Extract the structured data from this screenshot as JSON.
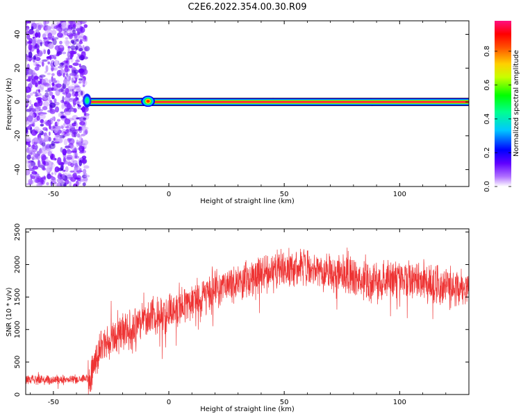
{
  "figure": {
    "title": "C2E6.2022.354.00.30.R09"
  },
  "colorbar": {
    "label": "Normalized spectral amplitude",
    "ticks": [
      "0.0",
      "0.2",
      "0.4",
      "0.6",
      "0.8"
    ],
    "tick_values": [
      0.0,
      0.2,
      0.4,
      0.6,
      0.8
    ],
    "range": [
      0.0,
      0.98
    ]
  },
  "chart_data": [
    {
      "type": "heatmap",
      "xlabel": "Height of straight line (km)",
      "ylabel": "Frequency (Hz)",
      "xlim": [
        -62,
        130
      ],
      "ylim": [
        -50,
        48
      ],
      "xticks": [
        -50,
        0,
        50,
        100
      ],
      "xtick_labels": [
        "-50",
        "0",
        "50",
        "100"
      ],
      "yticks": [
        -40,
        -20,
        0,
        20,
        40
      ],
      "ytick_labels": [
        "-40",
        "-20",
        "0",
        "20",
        "40"
      ],
      "colormap": [
        "#ffffff",
        "#8000ff",
        "#0000ff",
        "#00ffff",
        "#00ff00",
        "#ffff00",
        "#ff8000",
        "#ff0000",
        "#ff0080"
      ],
      "features": {
        "noise_region_x": [
          -62,
          -36
        ],
        "signal_line_frequency": 0,
        "signal_line_x_start": -36,
        "signal_blob_x": -9
      }
    },
    {
      "type": "line",
      "xlabel": "Height of straight line (km)",
      "ylabel": "SNR (10 * v/v)",
      "xlim": [
        -62,
        130
      ],
      "ylim": [
        0,
        2550
      ],
      "xticks": [
        -50,
        0,
        50,
        100
      ],
      "xtick_labels": [
        "-50",
        "0",
        "50",
        "100"
      ],
      "yticks": [
        0,
        500,
        1000,
        1500,
        2000,
        2500
      ],
      "ytick_labels": [
        "0",
        "500",
        "1000",
        "1500",
        "2000",
        "2500"
      ],
      "line_color": "#ee3333",
      "envelope_x": [
        -62,
        -40,
        -34,
        -30,
        -20,
        -10,
        0,
        10,
        20,
        30,
        40,
        50,
        60,
        70,
        80,
        90,
        100,
        110,
        120,
        130
      ],
      "envelope_y": [
        220,
        240,
        260,
        700,
        950,
        1150,
        1250,
        1450,
        1600,
        1750,
        1850,
        1950,
        1950,
        1850,
        1800,
        1700,
        1800,
        1750,
        1650,
        1650
      ],
      "noise_amplitude": 250
    }
  ]
}
